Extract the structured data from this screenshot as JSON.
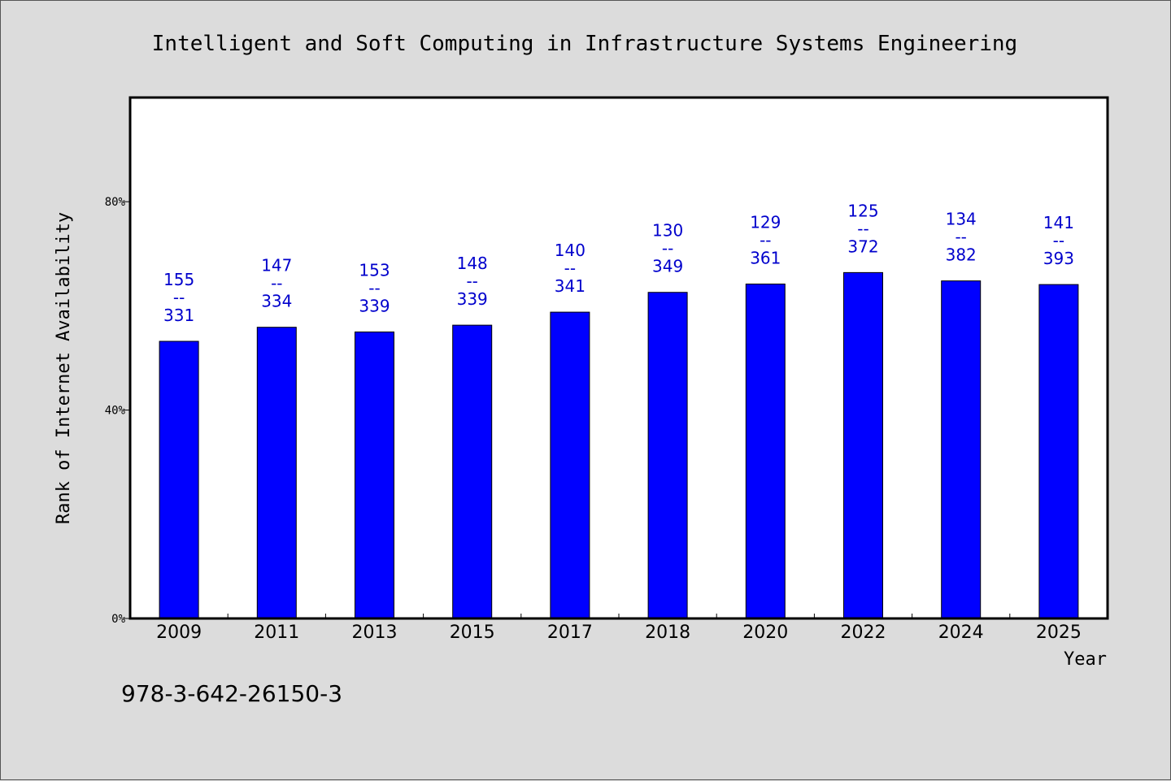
{
  "footer_text": "978-3-642-26150-3",
  "colors": {
    "background": "#dcdcdc",
    "plot_background": "#ffffff",
    "bar_fill": "#0000ff",
    "bar_label": "#0000cc",
    "axis": "#000000"
  },
  "chart_data": {
    "type": "bar",
    "title": "Intelligent and Soft Computing in Infrastructure Systems Engineering",
    "xlabel": "Year",
    "ylabel": "Rank of Internet Availability",
    "categories": [
      "2009",
      "2011",
      "2013",
      "2015",
      "2017",
      "2018",
      "2020",
      "2022",
      "2024",
      "2025"
    ],
    "values": [
      53.2,
      55.9,
      55.0,
      56.3,
      58.8,
      62.6,
      64.2,
      66.4,
      64.8,
      64.1
    ],
    "value_unit": "%",
    "ylim": [
      0,
      100
    ],
    "yticks": [
      0,
      40,
      80
    ],
    "ytick_labels": [
      "0%",
      "40%",
      "80%"
    ],
    "bar_labels": [
      {
        "top": "155",
        "sep": "--",
        "bottom": "331"
      },
      {
        "top": "147",
        "sep": "--",
        "bottom": "334"
      },
      {
        "top": "153",
        "sep": "--",
        "bottom": "339"
      },
      {
        "top": "148",
        "sep": "--",
        "bottom": "339"
      },
      {
        "top": "140",
        "sep": "--",
        "bottom": "341"
      },
      {
        "top": "130",
        "sep": "--",
        "bottom": "349"
      },
      {
        "top": "129",
        "sep": "--",
        "bottom": "361"
      },
      {
        "top": "125",
        "sep": "--",
        "bottom": "372"
      },
      {
        "top": "134",
        "sep": "--",
        "bottom": "382"
      },
      {
        "top": "141",
        "sep": "--",
        "bottom": "393"
      }
    ],
    "grid": false,
    "legend": "none"
  }
}
